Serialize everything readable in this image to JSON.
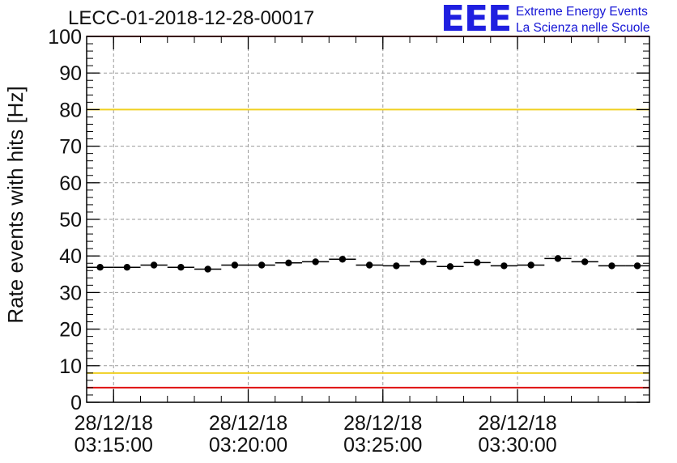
{
  "chart_data": {
    "type": "scatter",
    "title": "LECC-01-2018-12-28-00017",
    "ylabel": "Rate events with hits [Hz]",
    "xlabel": "",
    "ylim": [
      0,
      100
    ],
    "y_ticks": [
      0,
      10,
      20,
      30,
      40,
      50,
      60,
      70,
      80,
      90,
      100
    ],
    "x_ticks": [
      {
        "date": "28/12/18",
        "time": "03:15:00"
      },
      {
        "date": "28/12/18",
        "time": "03:20:00"
      },
      {
        "date": "28/12/18",
        "time": "03:25:00"
      },
      {
        "date": "28/12/18",
        "time": "03:30:00"
      }
    ],
    "x_range": [
      "03:14:00",
      "03:34:54"
    ],
    "grid": true,
    "bin_width_s": 60,
    "series": [
      {
        "x": [
          "03:14:00",
          "03:15:00",
          "03:16:00",
          "03:17:00",
          "03:18:00",
          "03:19:00",
          "03:20:00",
          "03:21:00",
          "03:22:00",
          "03:23:00",
          "03:24:00",
          "03:25:00",
          "03:26:00",
          "03:27:00",
          "03:28:00",
          "03:29:00",
          "03:30:00",
          "03:31:00",
          "03:32:00",
          "03:33:00",
          "03:34:00"
        ],
        "values": [
          36.9,
          36.9,
          37.5,
          36.9,
          36.4,
          37.5,
          37.5,
          38.1,
          38.4,
          39.1,
          37.5,
          37.3,
          38.4,
          37.1,
          38.2,
          37.3,
          37.5,
          39.3,
          38.4,
          37.3,
          37.3
        ],
        "color": "#000000"
      }
    ],
    "reference_lines": [
      {
        "y": 80,
        "color": "#f0d020"
      },
      {
        "y": 8,
        "color": "#f0d020"
      },
      {
        "y": 4,
        "color": "#e01010"
      },
      {
        "y": 100,
        "color": "#e01010"
      }
    ]
  },
  "logo": {
    "mark": "EEE",
    "line1": "Extreme Energy Events",
    "line2": "La Scienza nelle Scuole",
    "color": "#1f1fe0"
  }
}
